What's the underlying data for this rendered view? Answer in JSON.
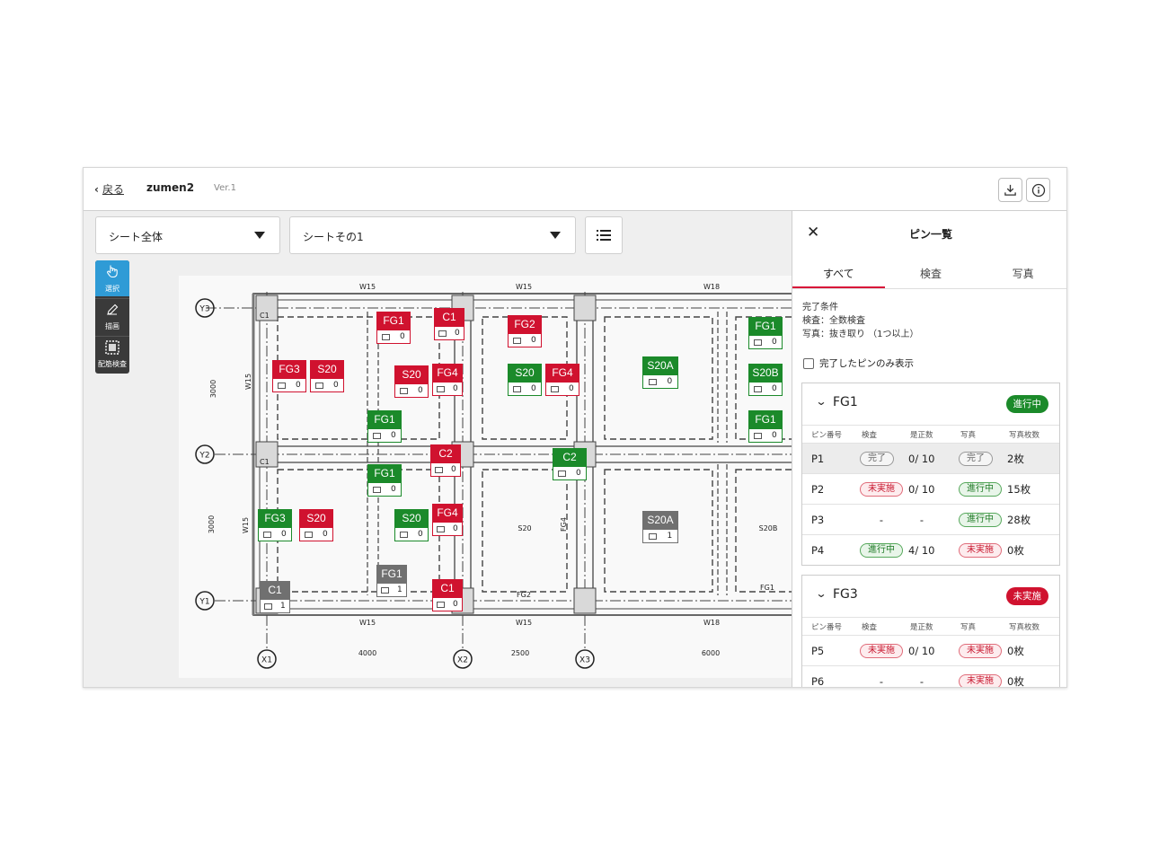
{
  "header": {
    "back_label": "戻る",
    "doc_title": "zumen2",
    "version": "Ver.1",
    "download_icon": "download-icon",
    "info_icon": "info-icon"
  },
  "toolbar": {
    "sheet_select": "シート全体",
    "sheet_page_select": "シートその1",
    "list_icon": "list-icon"
  },
  "tools": [
    {
      "label": "選択",
      "icon": "hand-pointer-icon",
      "active": true
    },
    {
      "label": "描画",
      "icon": "pencil-icon",
      "active": false
    },
    {
      "label": "配筋検査",
      "icon": "dashed-square-icon",
      "active": false
    }
  ],
  "drawing": {
    "grid_y": [
      "Y3",
      "Y2",
      "Y1"
    ],
    "grid_x": [
      "X1",
      "X2",
      "X3"
    ],
    "dimensions_x": [
      "4000",
      "2500",
      "6000"
    ],
    "dimensions_y": [
      "3000",
      "3000"
    ],
    "beam_top": [
      "W15",
      "W15",
      "W18"
    ],
    "beam_bottom": [
      "W15",
      "W15",
      "W18"
    ],
    "side_labels": [
      "W15",
      "W15"
    ],
    "column_label": "C1",
    "inner_labels": {
      "fg2": "FG2",
      "s20": "S20",
      "fg4": "FG4",
      "s20b": "S20B",
      "fg1": "FG1"
    },
    "pins": [
      {
        "name": "FG1",
        "count": "0",
        "status": "red"
      },
      {
        "name": "C1",
        "count": "0",
        "status": "red"
      },
      {
        "name": "FG2",
        "count": "0",
        "status": "red"
      },
      {
        "name": "FG1",
        "count": "0",
        "status": "green"
      },
      {
        "name": "FG3",
        "count": "0",
        "status": "red"
      },
      {
        "name": "S20",
        "count": "0",
        "status": "red"
      },
      {
        "name": "S20",
        "count": "0",
        "status": "red"
      },
      {
        "name": "FG4",
        "count": "0",
        "status": "red"
      },
      {
        "name": "S20",
        "count": "0",
        "status": "green"
      },
      {
        "name": "FG4",
        "count": "0",
        "status": "red"
      },
      {
        "name": "S20A",
        "count": "0",
        "status": "green"
      },
      {
        "name": "S20B",
        "count": "0",
        "status": "green"
      },
      {
        "name": "FG1",
        "count": "0",
        "status": "green"
      },
      {
        "name": "FG1",
        "count": "0",
        "status": "green"
      },
      {
        "name": "C2",
        "count": "0",
        "status": "red"
      },
      {
        "name": "C2",
        "count": "0",
        "status": "green"
      },
      {
        "name": "FG1",
        "count": "0",
        "status": "green"
      },
      {
        "name": "FG3",
        "count": "0",
        "status": "green"
      },
      {
        "name": "S20",
        "count": "0",
        "status": "red"
      },
      {
        "name": "S20",
        "count": "0",
        "status": "green"
      },
      {
        "name": "FG4",
        "count": "0",
        "status": "red"
      },
      {
        "name": "S20A",
        "count": "1",
        "status": "gray"
      },
      {
        "name": "FG1",
        "count": "1",
        "status": "gray"
      },
      {
        "name": "C1",
        "count": "0",
        "status": "red"
      },
      {
        "name": "C1",
        "count": "1",
        "status": "gray"
      }
    ],
    "colors": {
      "red": "#d0122f",
      "green": "#1b8a2a",
      "gray": "#707070"
    }
  },
  "panel": {
    "title": "ピン一覧",
    "tabs": [
      "すべて",
      "検査",
      "写真"
    ],
    "condition_title": "完了条件",
    "condition_inspection": "検査：全数検査",
    "condition_photo": "写真：抜き取り （1つ以上）",
    "filter_label": "完了したピンのみ表示",
    "columns": [
      "ピン番号",
      "検査",
      "是正数",
      "写真",
      "写真枚数"
    ],
    "groups": [
      {
        "name": "FG1",
        "status": "進行中",
        "status_color": "#1b8a2a",
        "rows": [
          {
            "pin": "P1",
            "inspection": "完了",
            "insp_style": "gray",
            "fix": "0/ 10",
            "photo": "完了",
            "photo_style": "gray",
            "count": "2枚",
            "highlight": true
          },
          {
            "pin": "P2",
            "inspection": "未実施",
            "insp_style": "red",
            "fix": "0/ 10",
            "photo": "進行中",
            "photo_style": "green",
            "count": "15枚",
            "highlight": false
          },
          {
            "pin": "P3",
            "inspection": "-",
            "insp_style": "",
            "fix": "-",
            "photo": "進行中",
            "photo_style": "green",
            "count": "28枚",
            "highlight": false
          },
          {
            "pin": "P4",
            "inspection": "進行中",
            "insp_style": "green",
            "fix": "4/ 10",
            "photo": "未実施",
            "photo_style": "red",
            "count": "0枚",
            "highlight": false
          }
        ]
      },
      {
        "name": "FG3",
        "status": "未実施",
        "status_color": "#d0122f",
        "rows": [
          {
            "pin": "P5",
            "inspection": "未実施",
            "insp_style": "red",
            "fix": "0/ 10",
            "photo": "未実施",
            "photo_style": "red",
            "count": "0枚",
            "highlight": false
          },
          {
            "pin": "P6",
            "inspection": "-",
            "insp_style": "",
            "fix": "-",
            "photo": "未実施",
            "photo_style": "red",
            "count": "0枚",
            "highlight": false
          }
        ]
      }
    ]
  }
}
